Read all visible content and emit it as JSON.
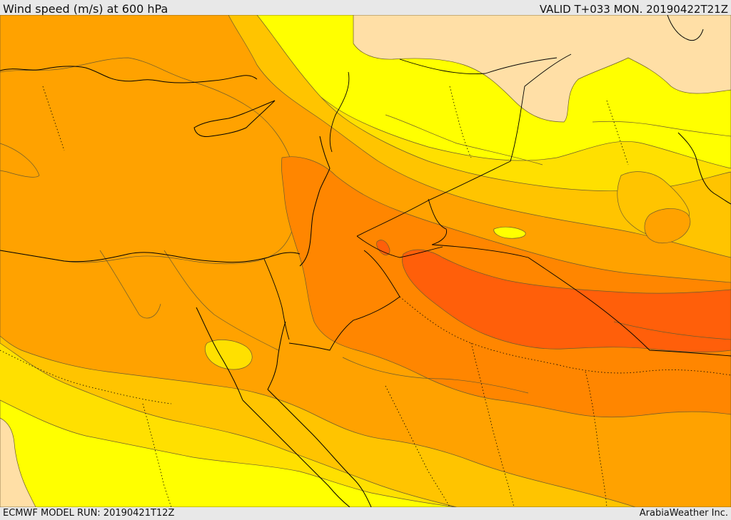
{
  "header": {
    "title": "Wind speed (m/s) at 600 hPa",
    "valid_time": "VALID T+033 MON. 20190422T21Z"
  },
  "footer": {
    "model_run": "ECMWF MODEL RUN: 20190421T12Z",
    "credit": "ArabiaWeather Inc."
  },
  "colors": {
    "very_light": "#ffdfa6",
    "light": "#ffff00",
    "yellow": "#ffe000",
    "gold": "#ffc400",
    "amber": "#ffa200",
    "orange": "#ff8600",
    "red_orange": "#ff5f0a",
    "contour": "#6b5b2e",
    "boundary": "#000000"
  }
}
